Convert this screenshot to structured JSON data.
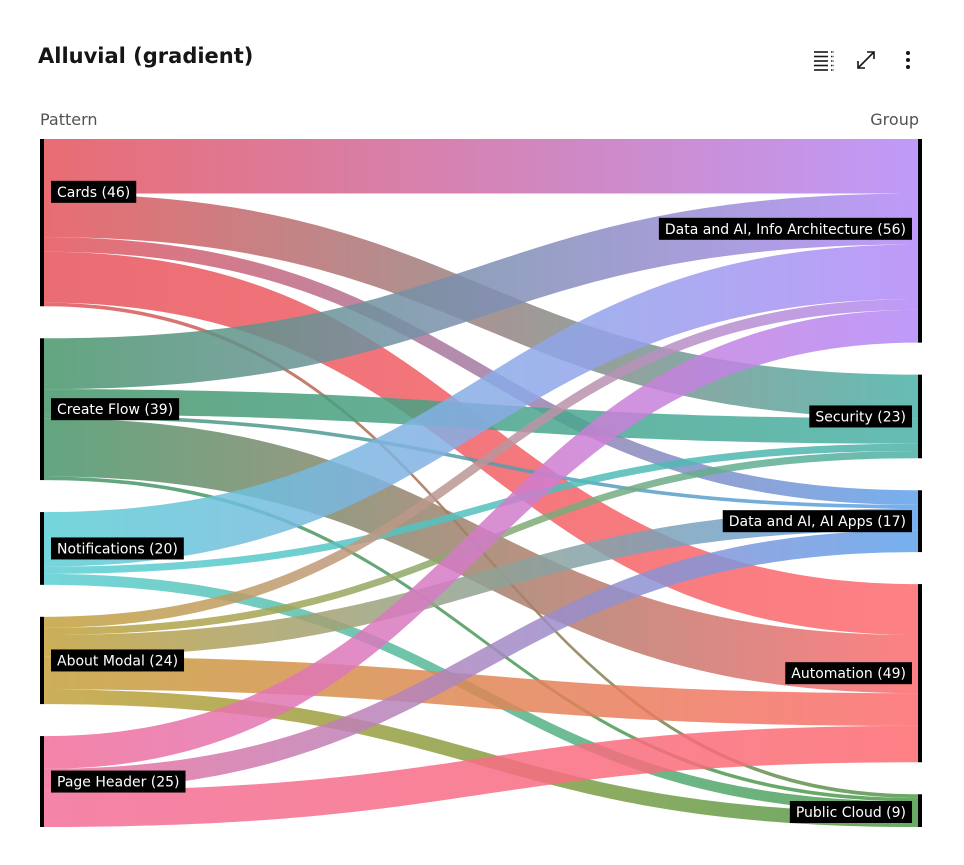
{
  "header": {
    "title": "Alluvial (gradient)",
    "icons": [
      "list-view-icon",
      "maximize-icon",
      "overflow-menu-icon"
    ]
  },
  "chart_data": {
    "type": "alluvial",
    "title": "Alluvial (gradient)",
    "left_axis_title": "Pattern",
    "right_axis_title": "Group",
    "left_nodes": [
      {
        "id": "cards",
        "name": "Cards",
        "value": 46,
        "label": "Cards (46)",
        "color": "#e5535a"
      },
      {
        "id": "createflow",
        "name": "Create Flow",
        "value": 39,
        "label": "Create Flow (39)",
        "color": "#47966a"
      },
      {
        "id": "notifications",
        "name": "Notifications",
        "value": 20,
        "label": "Notifications (20)",
        "color": "#5ccfd4"
      },
      {
        "id": "aboutmodal",
        "name": "About Modal",
        "value": 24,
        "label": "About Modal (24)",
        "color": "#c3a13a"
      },
      {
        "id": "pageheader",
        "name": "Page Header",
        "value": 25,
        "label": "Page Header (25)",
        "color": "#f26e99"
      }
    ],
    "right_nodes": [
      {
        "id": "dai_ia",
        "name": "Data and AI, Info Architecture",
        "value": 56,
        "label": "Data and AI, Info Architecture (56)",
        "color": "#b489f8"
      },
      {
        "id": "security",
        "name": "Security",
        "value": 23,
        "label": "Security (23)",
        "color": "#4ab1a7"
      },
      {
        "id": "dai_apps",
        "name": "Data and AI, AI Apps",
        "value": 17,
        "label": "Data and AI, AI Apps (17)",
        "color": "#5fa2ec"
      },
      {
        "id": "automation",
        "name": "Automation",
        "value": 49,
        "label": "Automation (49)",
        "color": "#fd6b6f"
      },
      {
        "id": "publiccloud",
        "name": "Public Cloud",
        "value": 9,
        "label": "Public Cloud (9)",
        "color": "#4f9a4b"
      }
    ],
    "links": [
      {
        "source": "cards",
        "target": "dai_ia",
        "value": 15
      },
      {
        "source": "cards",
        "target": "security",
        "value": 12
      },
      {
        "source": "cards",
        "target": "dai_apps",
        "value": 4
      },
      {
        "source": "cards",
        "target": "automation",
        "value": 14
      },
      {
        "source": "cards",
        "target": "publiccloud",
        "value": 1
      },
      {
        "source": "createflow",
        "target": "dai_ia",
        "value": 14
      },
      {
        "source": "createflow",
        "target": "security",
        "value": 7
      },
      {
        "source": "createflow",
        "target": "dai_apps",
        "value": 1
      },
      {
        "source": "createflow",
        "target": "automation",
        "value": 16
      },
      {
        "source": "createflow",
        "target": "publiccloud",
        "value": 1
      },
      {
        "source": "notifications",
        "target": "dai_ia",
        "value": 15
      },
      {
        "source": "notifications",
        "target": "security",
        "value": 2
      },
      {
        "source": "notifications",
        "target": "publiccloud",
        "value": 3
      },
      {
        "source": "aboutmodal",
        "target": "dai_ia",
        "value": 3
      },
      {
        "source": "aboutmodal",
        "target": "security",
        "value": 2
      },
      {
        "source": "aboutmodal",
        "target": "dai_apps",
        "value": 6
      },
      {
        "source": "aboutmodal",
        "target": "automation",
        "value": 9
      },
      {
        "source": "aboutmodal",
        "target": "publiccloud",
        "value": 4
      },
      {
        "source": "pageheader",
        "target": "dai_ia",
        "value": 9
      },
      {
        "source": "pageheader",
        "target": "dai_apps",
        "value": 6
      },
      {
        "source": "pageheader",
        "target": "automation",
        "value": 10
      }
    ]
  }
}
